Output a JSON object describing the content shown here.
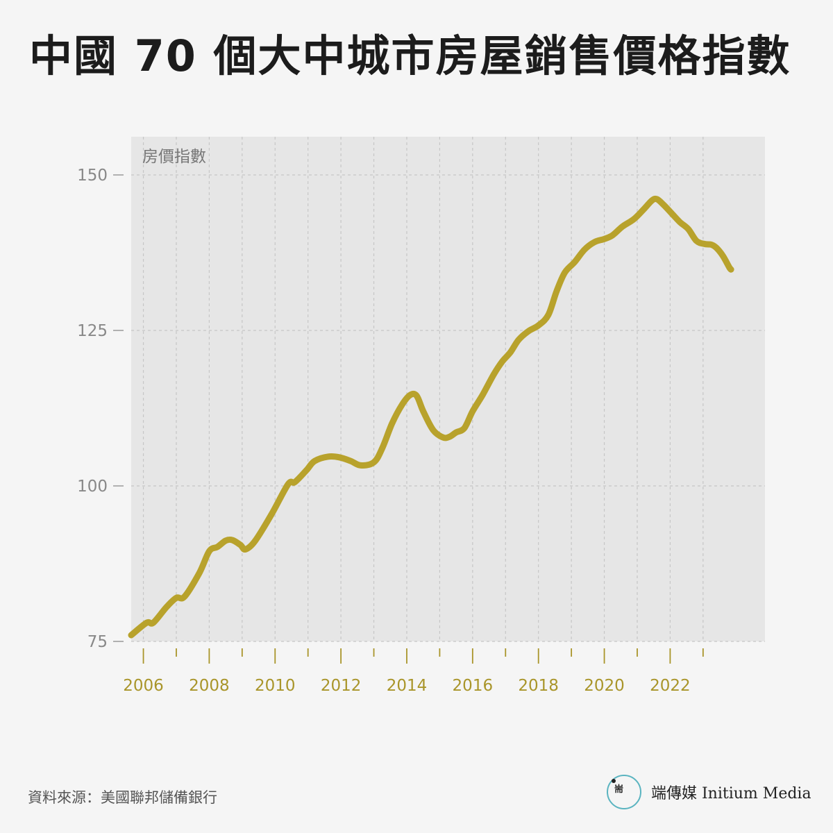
{
  "header": {
    "title": "中國 70 個大中城市房屋銷售價格指數"
  },
  "footer": {
    "source": "資料來源：美國聯邦儲備銀行",
    "brand": "端傳媒 Initium Media",
    "logo_glyph": "耑"
  },
  "colors": {
    "line": "#b8a22c",
    "x_tick_label": "#a9952a",
    "y_tick_label": "#888888",
    "plot_bg": "#e6e6e6",
    "grid": "#c6c6c6",
    "logo_ring": "#5ab4c0"
  },
  "chart_data": {
    "type": "line",
    "title": "中國 70 個大中城市房屋銷售價格指數",
    "ylabel": "房價指數",
    "xlabel": "",
    "ylim": [
      75,
      155
    ],
    "xlim": [
      2005.63,
      2024.88
    ],
    "yticks": [
      75,
      100,
      125,
      150
    ],
    "xticks": [
      "2006",
      "2008",
      "2010",
      "2012",
      "2014",
      "2016",
      "2018",
      "2020",
      "2022"
    ],
    "grid": true,
    "series": [
      {
        "values": [
          [
            2005.63,
            76
          ],
          [
            2006.1,
            78
          ],
          [
            2006.3,
            78
          ],
          [
            2006.7,
            80.5
          ],
          [
            2007.0,
            82
          ],
          [
            2007.25,
            82.2
          ],
          [
            2007.7,
            86
          ],
          [
            2008.0,
            89.5
          ],
          [
            2008.25,
            90.2
          ],
          [
            2008.5,
            91.2
          ],
          [
            2008.7,
            91.3
          ],
          [
            2008.95,
            90.5
          ],
          [
            2009.1,
            89.8
          ],
          [
            2009.4,
            91.2
          ],
          [
            2009.9,
            95.5
          ],
          [
            2010.4,
            100.3
          ],
          [
            2010.6,
            100.6
          ],
          [
            2010.95,
            102.5
          ],
          [
            2011.2,
            104
          ],
          [
            2011.6,
            104.7
          ],
          [
            2011.95,
            104.6
          ],
          [
            2012.3,
            104
          ],
          [
            2012.6,
            103.3
          ],
          [
            2013.0,
            103.8
          ],
          [
            2013.25,
            106
          ],
          [
            2013.55,
            110
          ],
          [
            2013.85,
            113
          ],
          [
            2014.1,
            114.6
          ],
          [
            2014.3,
            114.5
          ],
          [
            2014.5,
            112
          ],
          [
            2014.8,
            109
          ],
          [
            2015.1,
            107.8
          ],
          [
            2015.3,
            107.9
          ],
          [
            2015.5,
            108.6
          ],
          [
            2015.75,
            109.3
          ],
          [
            2016.0,
            112
          ],
          [
            2016.3,
            114.6
          ],
          [
            2016.65,
            118
          ],
          [
            2016.9,
            120
          ],
          [
            2017.15,
            121.5
          ],
          [
            2017.4,
            123.5
          ],
          [
            2017.7,
            124.9
          ],
          [
            2018.0,
            125.8
          ],
          [
            2018.3,
            127.5
          ],
          [
            2018.55,
            131.3
          ],
          [
            2018.8,
            134.3
          ],
          [
            2019.1,
            136
          ],
          [
            2019.4,
            138
          ],
          [
            2019.7,
            139.2
          ],
          [
            2020.0,
            139.7
          ],
          [
            2020.25,
            140.3
          ],
          [
            2020.55,
            141.7
          ],
          [
            2020.9,
            142.9
          ],
          [
            2021.2,
            144.5
          ],
          [
            2021.45,
            145.9
          ],
          [
            2021.6,
            146.1
          ],
          [
            2021.8,
            145.2
          ],
          [
            2022.05,
            143.8
          ],
          [
            2022.3,
            142.4
          ],
          [
            2022.55,
            141.3
          ],
          [
            2022.8,
            139.4
          ],
          [
            2023.05,
            138.9
          ],
          [
            2023.25,
            138.8
          ],
          [
            2023.4,
            138.3
          ],
          [
            2023.6,
            137
          ],
          [
            2023.8,
            135.1
          ],
          [
            2023.85,
            134.8
          ]
        ]
      }
    ]
  }
}
